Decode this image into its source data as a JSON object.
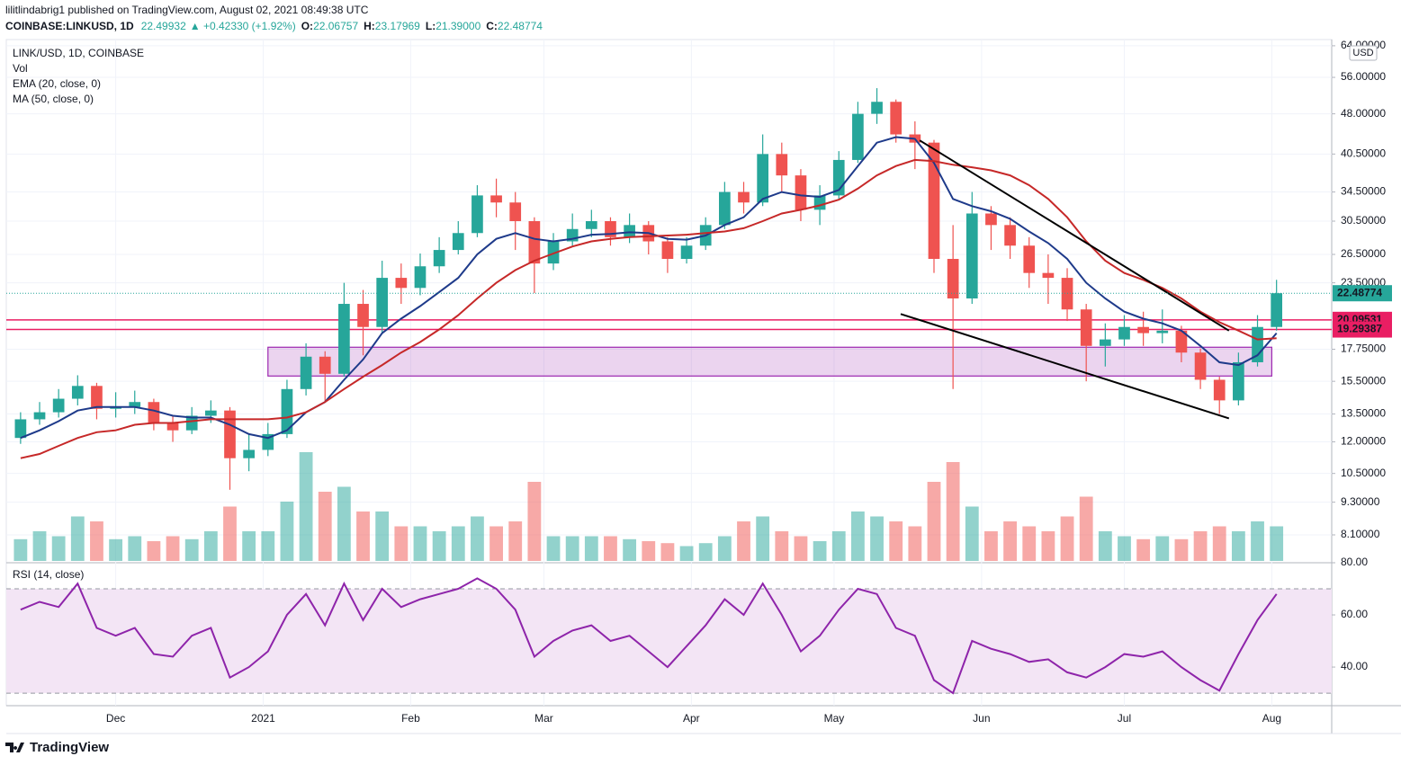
{
  "header": {
    "published": "lilitlindabrig1 published on TradingView.com, August 02, 2021 08:49:38 UTC",
    "symbol": "COINBASE:LINKUSD, 1D",
    "price": "22.49932",
    "change": "▲ +0.42330 (+1.92%)",
    "ohlc": [
      {
        "label": "O:",
        "value": "22.06757"
      },
      {
        "label": "H:",
        "value": "23.17969"
      },
      {
        "label": "L:",
        "value": "21.39000"
      },
      {
        "label": "C:",
        "value": "22.48774"
      }
    ]
  },
  "footer": "TradingView",
  "chart_data": [
    {
      "type": "candlestick",
      "title": "LINK/USD, 1D, COINBASE",
      "volume_label": "Vol",
      "y_axis_label": "USD",
      "log_scale": true,
      "grid": true,
      "up_color": "#26a69a",
      "down_color": "#ef5350",
      "x": [
        3,
        7,
        11,
        15,
        19,
        23,
        27,
        31,
        35,
        39,
        43,
        47,
        51,
        55,
        59,
        63,
        67,
        71,
        75,
        79,
        83,
        87,
        91,
        95,
        99,
        103,
        107,
        111,
        115,
        119,
        123,
        127,
        131,
        135,
        139,
        143,
        147,
        151,
        155,
        159,
        163,
        167,
        171,
        175,
        179,
        183,
        187,
        191,
        195,
        199,
        203,
        207,
        211,
        215,
        219,
        223,
        227,
        231,
        235,
        239,
        243,
        247,
        251,
        255,
        259,
        263,
        267
      ],
      "open": [
        12.2,
        13.2,
        13.6,
        14.4,
        15.2,
        13.8,
        13.9,
        14.2,
        13.0,
        12.6,
        13.4,
        13.7,
        11.2,
        11.6,
        12.4,
        15.0,
        17.2,
        16.0,
        21.5,
        19.5,
        24.0,
        23.0,
        25.2,
        27.0,
        29.0,
        34.0,
        33.0,
        30.5,
        25.5,
        28.0,
        29.5,
        30.5,
        28.5,
        30.0,
        28.0,
        26.0,
        27.5,
        30.0,
        34.5,
        33.0,
        40.5,
        37.0,
        32.0,
        34.0,
        39.5,
        48.0,
        50.5,
        44.0,
        42.5,
        26.0,
        22.0,
        31.5,
        30.0,
        27.5,
        24.5,
        24.0,
        21.0,
        18.0,
        18.5,
        19.5,
        19.0,
        19.2,
        17.5,
        15.6,
        14.3,
        16.8,
        19.5
      ],
      "high": [
        13.6,
        14.2,
        15.0,
        15.9,
        15.4,
        14.8,
        14.9,
        14.4,
        13.4,
        13.9,
        14.3,
        13.9,
        12.4,
        13.0,
        15.6,
        18.2,
        17.6,
        23.5,
        22.8,
        25.8,
        25.5,
        26.6,
        28.5,
        30.5,
        35.5,
        36.5,
        34.5,
        31.0,
        29.0,
        31.5,
        32.0,
        31.0,
        31.5,
        30.5,
        28.5,
        28.5,
        31.0,
        36.0,
        36.0,
        44.0,
        42.5,
        38.0,
        35.5,
        41.0,
        50.5,
        53.5,
        51.0,
        46.5,
        43.0,
        30.0,
        34.5,
        32.5,
        31.0,
        28.5,
        26.5,
        25.0,
        21.5,
        19.8,
        20.5,
        20.8,
        21.0,
        19.6,
        17.8,
        15.8,
        17.5,
        20.5,
        23.8
      ],
      "low": [
        11.9,
        12.9,
        13.3,
        14.0,
        13.2,
        13.3,
        13.5,
        12.6,
        12.0,
        12.4,
        13.0,
        9.8,
        10.6,
        11.3,
        12.2,
        14.6,
        14.2,
        15.8,
        17.3,
        19.0,
        21.5,
        22.3,
        24.5,
        26.5,
        28.5,
        31.0,
        27.0,
        22.5,
        24.8,
        27.5,
        28.5,
        27.5,
        27.8,
        26.5,
        24.5,
        25.5,
        27.0,
        29.5,
        31.5,
        32.5,
        34.5,
        30.5,
        30.0,
        33.5,
        39.0,
        46.0,
        42.5,
        38.0,
        24.5,
        15.0,
        21.5,
        27.0,
        26.0,
        23.0,
        21.5,
        20.0,
        15.5,
        16.5,
        18.0,
        18.0,
        18.2,
        16.8,
        15.0,
        13.5,
        14.0,
        16.5,
        19.2
      ],
      "close": [
        13.2,
        13.6,
        14.4,
        15.2,
        13.8,
        13.9,
        14.2,
        13.0,
        12.6,
        13.4,
        13.7,
        11.2,
        11.6,
        12.4,
        15.0,
        17.2,
        16.0,
        21.5,
        19.5,
        24.0,
        23.0,
        25.2,
        27.0,
        29.0,
        34.0,
        33.0,
        30.5,
        25.5,
        28.0,
        29.5,
        30.5,
        28.5,
        30.0,
        28.0,
        26.0,
        27.5,
        30.0,
        34.5,
        33.0,
        40.5,
        37.0,
        32.0,
        34.0,
        39.5,
        48.0,
        50.5,
        44.0,
        42.5,
        26.0,
        22.0,
        31.5,
        30.0,
        27.5,
        24.5,
        24.0,
        21.0,
        18.0,
        18.5,
        19.5,
        19.0,
        19.2,
        17.5,
        15.6,
        14.3,
        16.8,
        19.5,
        22.49
      ],
      "volume": [
        22,
        30,
        25,
        45,
        40,
        22,
        25,
        20,
        25,
        22,
        30,
        55,
        30,
        30,
        60,
        110,
        70,
        75,
        50,
        50,
        35,
        35,
        30,
        35,
        45,
        35,
        40,
        80,
        25,
        25,
        25,
        25,
        22,
        20,
        18,
        15,
        18,
        25,
        40,
        45,
        30,
        25,
        20,
        30,
        50,
        45,
        40,
        35,
        80,
        100,
        55,
        30,
        40,
        35,
        30,
        45,
        65,
        30,
        25,
        22,
        25,
        22,
        30,
        35,
        30,
        40,
        35
      ],
      "series": [
        {
          "name": "EMA (20, close, 0)",
          "color": "#1e3a8a",
          "values": [
            12.2,
            12.6,
            13.1,
            13.7,
            13.9,
            13.9,
            13.9,
            13.7,
            13.4,
            13.3,
            13.3,
            12.9,
            12.4,
            12.2,
            12.6,
            13.6,
            14.2,
            15.6,
            17.0,
            19.0,
            20.2,
            21.3,
            22.6,
            24.0,
            26.5,
            28.3,
            29.0,
            28.3,
            28.0,
            28.3,
            28.8,
            28.9,
            29.1,
            29.0,
            28.3,
            28.2,
            28.7,
            30.0,
            31.0,
            33.5,
            34.5,
            34.0,
            33.8,
            34.8,
            38.5,
            42.5,
            43.5,
            43.2,
            39.0,
            33.5,
            32.5,
            31.8,
            30.8,
            29.2,
            27.8,
            26.0,
            23.5,
            22.0,
            20.8,
            20.2,
            19.8,
            19.2,
            18.0,
            16.8,
            16.6,
            17.3,
            19.0
          ]
        },
        {
          "name": "MA (50, close, 0)",
          "color": "#c62828",
          "values": [
            11.2,
            11.4,
            11.8,
            12.2,
            12.5,
            12.6,
            12.9,
            13.0,
            13.0,
            13.1,
            13.2,
            13.2,
            13.2,
            13.2,
            13.3,
            13.6,
            14.2,
            15.0,
            15.8,
            16.6,
            17.5,
            18.3,
            19.3,
            20.5,
            22.0,
            23.5,
            24.8,
            25.8,
            26.6,
            27.4,
            28.0,
            28.3,
            28.5,
            28.6,
            28.7,
            28.8,
            29.0,
            29.2,
            29.6,
            30.5,
            31.5,
            32.0,
            32.6,
            33.4,
            35.0,
            37.0,
            38.5,
            39.5,
            39.3,
            38.7,
            38.3,
            37.8,
            37.0,
            35.5,
            33.5,
            31.0,
            28.0,
            25.8,
            24.5,
            23.8,
            23.0,
            22.0,
            20.8,
            19.9,
            19.2,
            18.5,
            18.6
          ]
        }
      ],
      "xlim": [
        0,
        278.6
      ],
      "xticks": [
        {
          "value": 23,
          "label": "Dec"
        },
        {
          "value": 54,
          "label": "2021"
        },
        {
          "value": 85,
          "label": "Feb"
        },
        {
          "value": 113,
          "label": "Mar"
        },
        {
          "value": 144,
          "label": "Apr"
        },
        {
          "value": 174,
          "label": "May"
        },
        {
          "value": 205,
          "label": "Jun"
        },
        {
          "value": 235,
          "label": "Jul"
        },
        {
          "value": 266,
          "label": "Aug"
        }
      ],
      "ylim": [
        7.2,
        65.7
      ],
      "yticks": [
        {
          "value": 8.1,
          "label": "8.10000"
        },
        {
          "value": 9.3,
          "label": "9.30000"
        },
        {
          "value": 10.5,
          "label": "10.50000"
        },
        {
          "value": 12,
          "label": "12.00000"
        },
        {
          "value": 13.5,
          "label": "13.50000"
        },
        {
          "value": 15.5,
          "label": "15.50000"
        },
        {
          "value": 17.75,
          "label": "17.75000"
        },
        {
          "value": 23.5,
          "label": "23.50000"
        },
        {
          "value": 26.5,
          "label": "26.50000"
        },
        {
          "value": 30.5,
          "label": "30.50000"
        },
        {
          "value": 34.5,
          "label": "34.50000"
        },
        {
          "value": 40.5,
          "label": "40.50000"
        },
        {
          "value": 48,
          "label": "48.00000"
        },
        {
          "value": 56,
          "label": "56.00000"
        },
        {
          "value": 64,
          "label": "64.00000"
        }
      ],
      "last_price": 22.48774,
      "last_price_color": "#26a69a",
      "levels": [
        20.09531,
        19.29387
      ],
      "level_color": "#e91e63",
      "zone": {
        "x": [
          55,
          266
        ],
        "y": [
          15.85,
          17.9
        ],
        "color": "#9c27b0"
      },
      "trend_lines": [
        {
          "x": [
            192,
            257
          ],
          "y": [
            42.9,
            19.2
          ]
        },
        {
          "x": [
            188,
            257
          ],
          "y": [
            20.6,
            13.25
          ]
        }
      ]
    },
    {
      "type": "line",
      "title": "RSI (14, close)",
      "x": [
        3,
        7,
        11,
        15,
        19,
        23,
        27,
        31,
        35,
        39,
        43,
        47,
        51,
        55,
        59,
        63,
        67,
        71,
        75,
        79,
        83,
        87,
        91,
        95,
        99,
        103,
        107,
        111,
        115,
        119,
        123,
        127,
        131,
        135,
        139,
        143,
        147,
        151,
        155,
        159,
        163,
        167,
        171,
        175,
        179,
        183,
        187,
        191,
        195,
        199,
        203,
        207,
        211,
        215,
        219,
        223,
        227,
        231,
        235,
        239,
        243,
        247,
        251,
        255,
        259,
        263,
        267
      ],
      "series": [
        {
          "name": "RSI (14, close)",
          "color": "#8e24aa",
          "values": [
            62,
            65,
            63,
            72,
            55,
            52,
            55,
            45,
            44,
            52,
            55,
            36,
            40,
            46,
            60,
            68,
            56,
            72,
            58,
            70,
            63,
            66,
            68,
            70,
            74,
            70,
            62,
            44,
            50,
            54,
            56,
            50,
            52,
            46,
            40,
            48,
            56,
            66,
            60,
            72,
            60,
            46,
            52,
            62,
            70,
            68,
            55,
            52,
            35,
            30,
            50,
            47,
            45,
            42,
            43,
            38,
            36,
            40,
            45,
            44,
            46,
            40,
            35,
            31,
            45,
            58,
            68
          ]
        }
      ],
      "bands": [
        30,
        70
      ],
      "band_color": "#f3e5f5",
      "ylim": [
        25.2,
        80
      ],
      "yticks": [
        {
          "value": 80,
          "label": "80.00"
        },
        {
          "value": 60,
          "label": "60.00"
        },
        {
          "value": 40,
          "label": "40.00"
        }
      ]
    }
  ]
}
